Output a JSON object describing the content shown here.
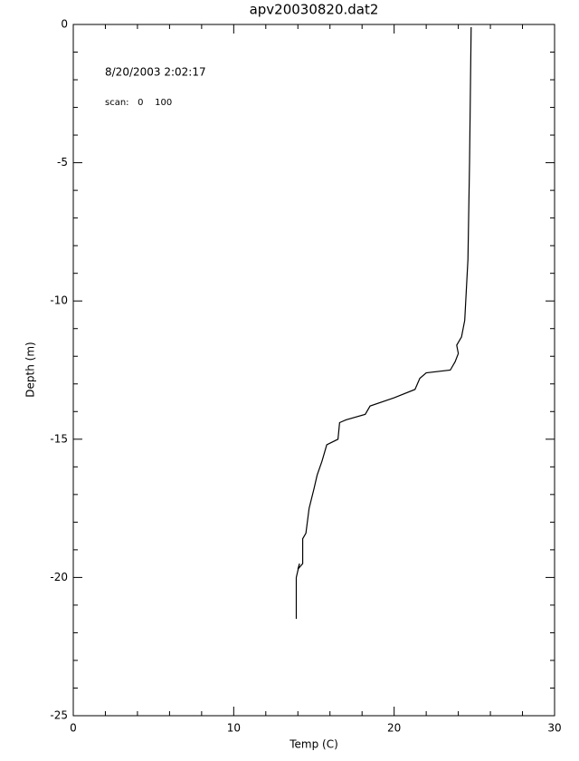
{
  "chart_data": {
    "type": "line",
    "title": "apv20030820.dat2",
    "x_label": "Temp (C)",
    "y_label": "Depth (m)",
    "annotations": [
      "8/20/2003 2:02:17",
      "scan:   0    100"
    ],
    "x": [
      24.8,
      24.7,
      24.6,
      24.4,
      24.2,
      23.9,
      24.0,
      23.8,
      23.5,
      22.0,
      21.6,
      21.3,
      20.0,
      18.5,
      18.2,
      17.0,
      16.6,
      16.5,
      15.8,
      15.5,
      15.2,
      15.0,
      14.7,
      14.5,
      14.3,
      14.3,
      14.0,
      14.1,
      13.9,
      13.9
    ],
    "values": [
      -0.1,
      -5.0,
      -8.5,
      -10.7,
      -11.3,
      -11.6,
      -11.9,
      -12.2,
      -12.5,
      -12.6,
      -12.8,
      -13.2,
      -13.5,
      -13.8,
      -14.1,
      -14.3,
      -14.4,
      -15.0,
      -15.2,
      -15.8,
      -16.3,
      -16.8,
      -17.5,
      -18.4,
      -18.6,
      -19.5,
      -19.7,
      -19.5,
      -20.0,
      -21.5
    ],
    "color": "#000000",
    "xlim": [
      0,
      30
    ],
    "xticks": [
      0,
      10,
      20,
      30
    ],
    "ylim": [
      -25,
      0
    ],
    "yticks": [
      -25,
      -20,
      -15,
      -10,
      -5,
      0
    ]
  }
}
